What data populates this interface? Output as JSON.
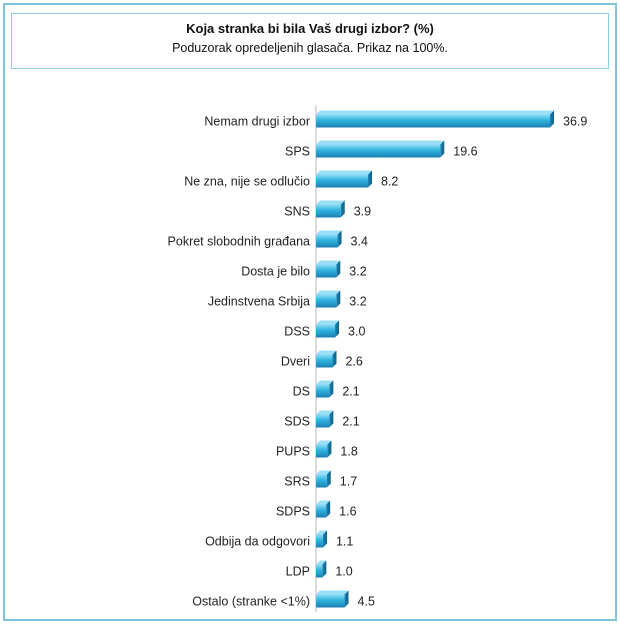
{
  "chart_data": {
    "type": "bar",
    "orientation": "horizontal",
    "title": "Koja stranka bi bila Vaš drugi izbor? (%)",
    "subtitle": "Poduzorak opredeljenih glasača. Prikaz na 100%.",
    "categories": [
      "Nemam drugi izbor",
      "SPS",
      "Ne zna, nije se odlučio",
      "SNS",
      "Pokret slobodnih  građana",
      "Dosta je bilo",
      "Jedinstvena Srbija",
      "DSS",
      "Dveri",
      "DS",
      "SDS",
      "PUPS",
      "SRS",
      "SDPS",
      "Odbija da odgovori",
      "LDP",
      "Ostalo (stranke <1%)"
    ],
    "values": [
      36.9,
      19.6,
      8.2,
      3.9,
      3.4,
      3.2,
      3.2,
      3.0,
      2.6,
      2.1,
      2.1,
      1.8,
      1.7,
      1.6,
      1.1,
      1.0,
      4.5
    ],
    "value_labels": [
      "36.9",
      "19.6",
      "8.2",
      "3.9",
      "3.4",
      "3.2",
      "3.2",
      "3.0",
      "2.6",
      "2.1",
      "2.1",
      "1.8",
      "1.7",
      "1.6",
      "1.1",
      "1.0",
      "4.5"
    ],
    "xlim": [
      0,
      40
    ],
    "grid": false,
    "bar_color": "#2aa8d8"
  }
}
